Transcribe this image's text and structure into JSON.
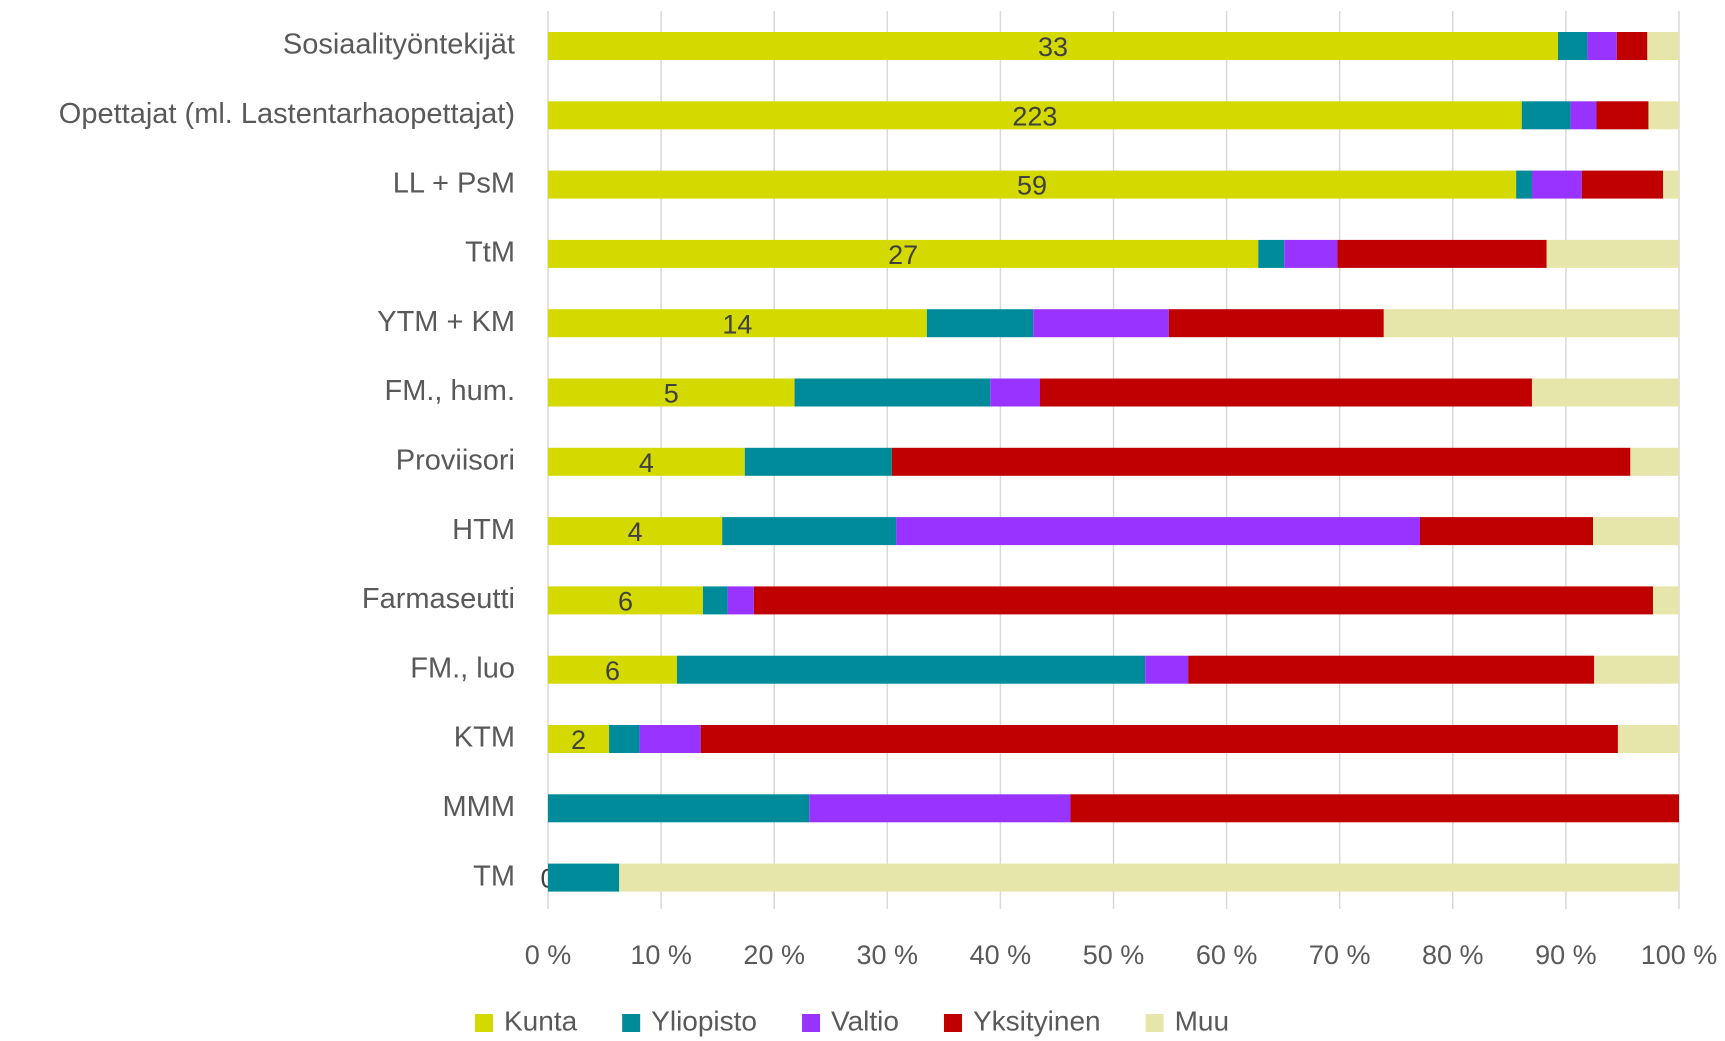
{
  "chart_data": {
    "type": "stacked_bar_horizontal_100",
    "categories": [
      "Sosiaalityöntekijät",
      "Opettajat (ml. Lastentarhaopettajat)",
      "LL + PsM",
      "TtM",
      "YTM + KM",
      "FM., hum.",
      "Proviisori",
      "HTM",
      "Farmaseutti",
      "FM., luo",
      "KTM",
      "MMM",
      "TM"
    ],
    "series": [
      {
        "name": "Kunta",
        "color": "#d4d900",
        "values": [
          89.3,
          86.1,
          85.6,
          62.8,
          33.5,
          21.8,
          17.4,
          15.4,
          13.7,
          11.4,
          5.4,
          0,
          0
        ],
        "data_labels": [
          33,
          223,
          59,
          27,
          14,
          5,
          4,
          4,
          6,
          6,
          2,
          null,
          0
        ]
      },
      {
        "name": "Yliopisto",
        "color": "#008b9b",
        "values": [
          2.6,
          4.3,
          1.4,
          2.3,
          9.4,
          17.3,
          13.0,
          15.4,
          2.2,
          41.4,
          2.7,
          23.1,
          6.3
        ]
      },
      {
        "name": "Valtio",
        "color": "#9933ff",
        "values": [
          2.6,
          2.3,
          4.4,
          4.7,
          12.0,
          4.4,
          0,
          46.3,
          2.3,
          3.8,
          5.4,
          23.1,
          0
        ]
      },
      {
        "name": "Yksityinen",
        "color": "#c00000",
        "values": [
          2.7,
          4.6,
          7.2,
          18.5,
          19.0,
          43.5,
          65.3,
          15.3,
          79.5,
          35.9,
          81.1,
          53.8,
          0
        ]
      },
      {
        "name": "Muu",
        "color": "#e6e6aa",
        "values": [
          2.8,
          2.7,
          1.4,
          11.7,
          26.1,
          13.0,
          4.3,
          7.6,
          2.3,
          7.5,
          5.4,
          0,
          93.7
        ]
      }
    ],
    "xlim": [
      0,
      100
    ],
    "xticks": [
      {
        "value": 0,
        "label": "0 %"
      },
      {
        "value": 10,
        "label": "10 %"
      },
      {
        "value": 20,
        "label": "20 %"
      },
      {
        "value": 30,
        "label": "30 %"
      },
      {
        "value": 40,
        "label": "40 %"
      },
      {
        "value": 50,
        "label": "50 %"
      },
      {
        "value": 60,
        "label": "60 %"
      },
      {
        "value": 70,
        "label": "70 %"
      },
      {
        "value": 80,
        "label": "80 %"
      },
      {
        "value": 90,
        "label": "90 %"
      },
      {
        "value": 100,
        "label": "100 %"
      }
    ],
    "grid": true,
    "legend": "bottom"
  }
}
